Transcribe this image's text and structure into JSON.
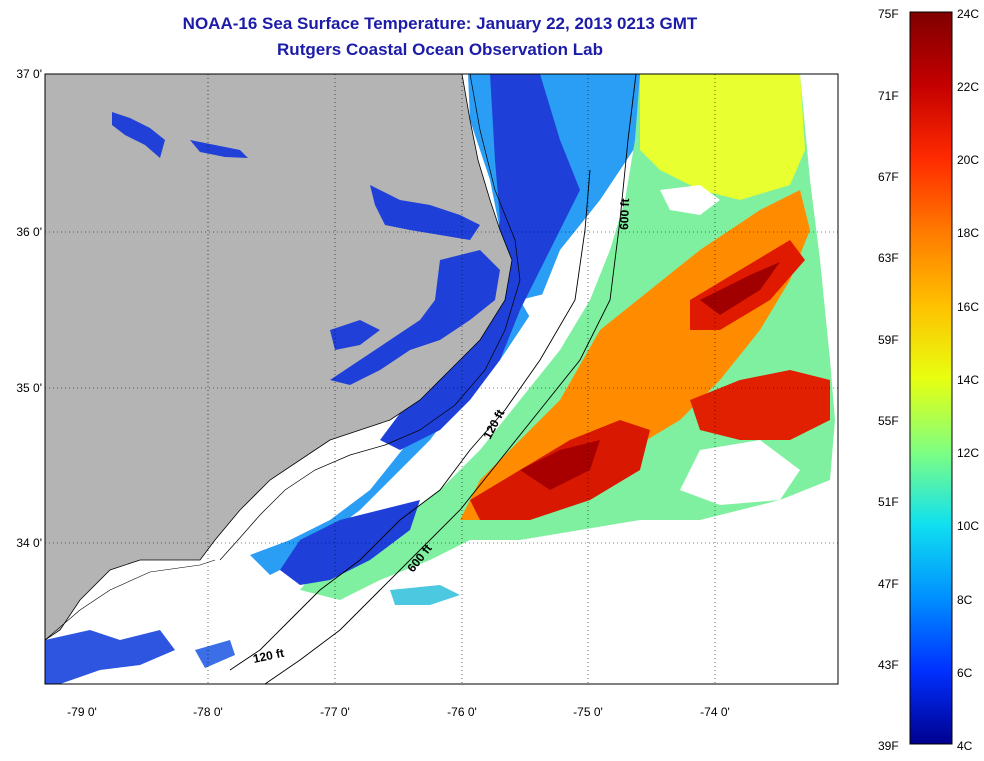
{
  "title": "NOAA-16 Sea Surface Temperature:  January 22, 2013 0213 GMT",
  "subtitle": "Rutgers Coastal Ocean Observation Lab",
  "latitude_labels": [
    "37 0'",
    "36 0'",
    "35 0'",
    "34 0'"
  ],
  "longitude_labels": [
    "-79 0'",
    "-78 0'",
    "-77 0'",
    "-76 0'",
    "-75 0'",
    "-74 0'"
  ],
  "contour_labels": [
    "600 ft",
    "120 ft",
    "600 ft",
    "120 ft"
  ],
  "colorbar": {
    "fahrenheit": [
      "75F",
      "71F",
      "67F",
      "63F",
      "59F",
      "55F",
      "51F",
      "47F",
      "43F",
      "39F"
    ],
    "celsius": [
      "24C",
      "22C",
      "20C",
      "18C",
      "16C",
      "14C",
      "12C",
      "10C",
      "8C",
      "6C",
      "4C"
    ],
    "colors": [
      "#7f0000",
      "#c40000",
      "#ff2a00",
      "#ff7a00",
      "#ffc000",
      "#e8ff10",
      "#80ff80",
      "#10e0f0",
      "#0090ff",
      "#0030ff",
      "#00008f"
    ]
  },
  "colors": {
    "land": "#b4b4b4",
    "ocean_no_data": "#ffffff",
    "title": "#1c1ca8"
  }
}
